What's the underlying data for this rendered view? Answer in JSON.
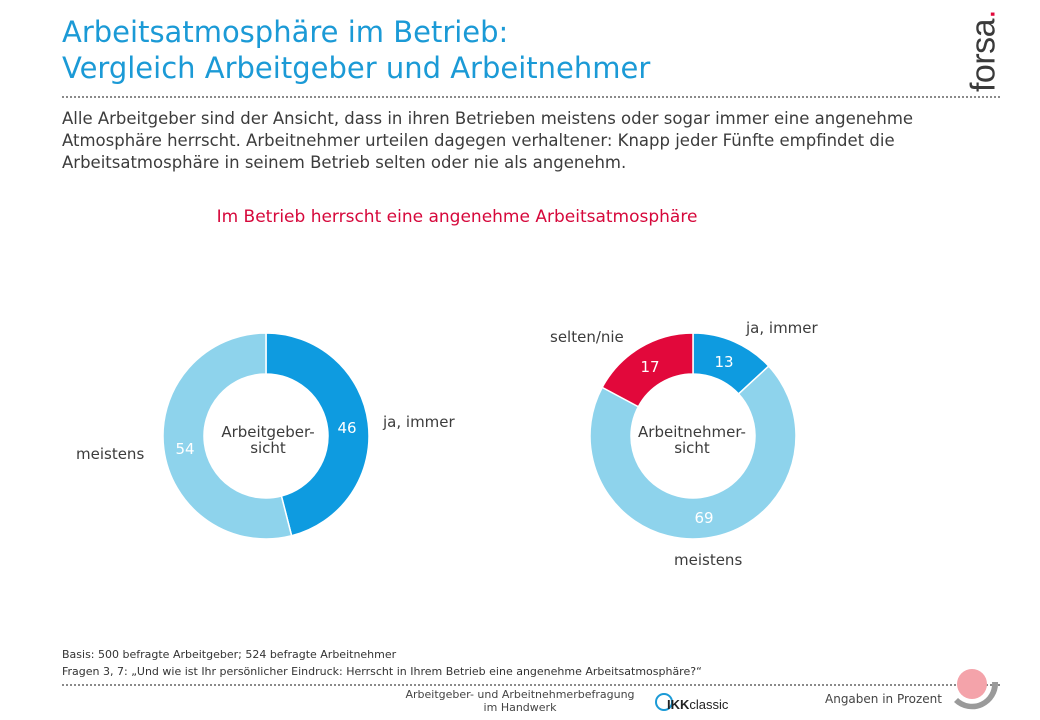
{
  "title": {
    "line1": "Arbeitsatmosphäre im Betrieb:",
    "line2": "Vergleich Arbeitgeber und Arbeitnehmer"
  },
  "logo": {
    "text": "forsa",
    "dot": "."
  },
  "intro": "Alle Arbeitgeber sind der Ansicht, dass in ihren Betrieben meistens oder sogar immer eine angenehme Atmosphäre herrscht. Arbeitnehmer urteilen dagegen verhaltener: Knapp jeder Fünfte empfindet die Arbeitsatmosphäre in seinem Betrieb selten oder nie als angenehm.",
  "colors": {
    "title": "#1b9ad6",
    "subtitle": "#d6083b",
    "ja_immer": "#0e9be0",
    "meistens": "#8ed3ec",
    "selten_nie": "#e2083b"
  },
  "chart_data": [
    {
      "type": "donut",
      "title": "Im Betrieb herrscht eine angenehme Arbeitsatmosphäre",
      "center_label": [
        "Arbeitgeber-",
        "sicht"
      ],
      "slices": [
        {
          "label": "ja, immer",
          "value": 46,
          "color": "#0e9be0"
        },
        {
          "label": "meistens",
          "value": 54,
          "color": "#8ed3ec"
        }
      ]
    },
    {
      "type": "donut",
      "title": "Im Betrieb herrscht eine angenehme Arbeitsatmosphäre",
      "center_label": [
        "Arbeitnehmer-",
        "sicht"
      ],
      "slices": [
        {
          "label": "ja, immer",
          "value": 13,
          "color": "#0e9be0"
        },
        {
          "label": "meistens",
          "value": 69,
          "color": "#8ed3ec"
        },
        {
          "label": "selten/nie",
          "value": 17,
          "color": "#e2083b"
        }
      ]
    }
  ],
  "basis": {
    "line1": "Basis: 500 befragte Arbeitgeber; 524 befragte Arbeitnehmer",
    "line2": "Fragen 3, 7:  „Und wie ist Ihr persönlicher Eindruck: Herrscht in Ihrem Betrieb eine angenehme Arbeitsatmosphäre?“"
  },
  "footer": {
    "survey_line1": "Arbeitgeber- und Arbeitnehmerbefragung",
    "survey_line2": "im Handwerk",
    "sponsor_bold": "IKK",
    "sponsor_rest": "classic",
    "units": "Angaben in Prozent"
  }
}
